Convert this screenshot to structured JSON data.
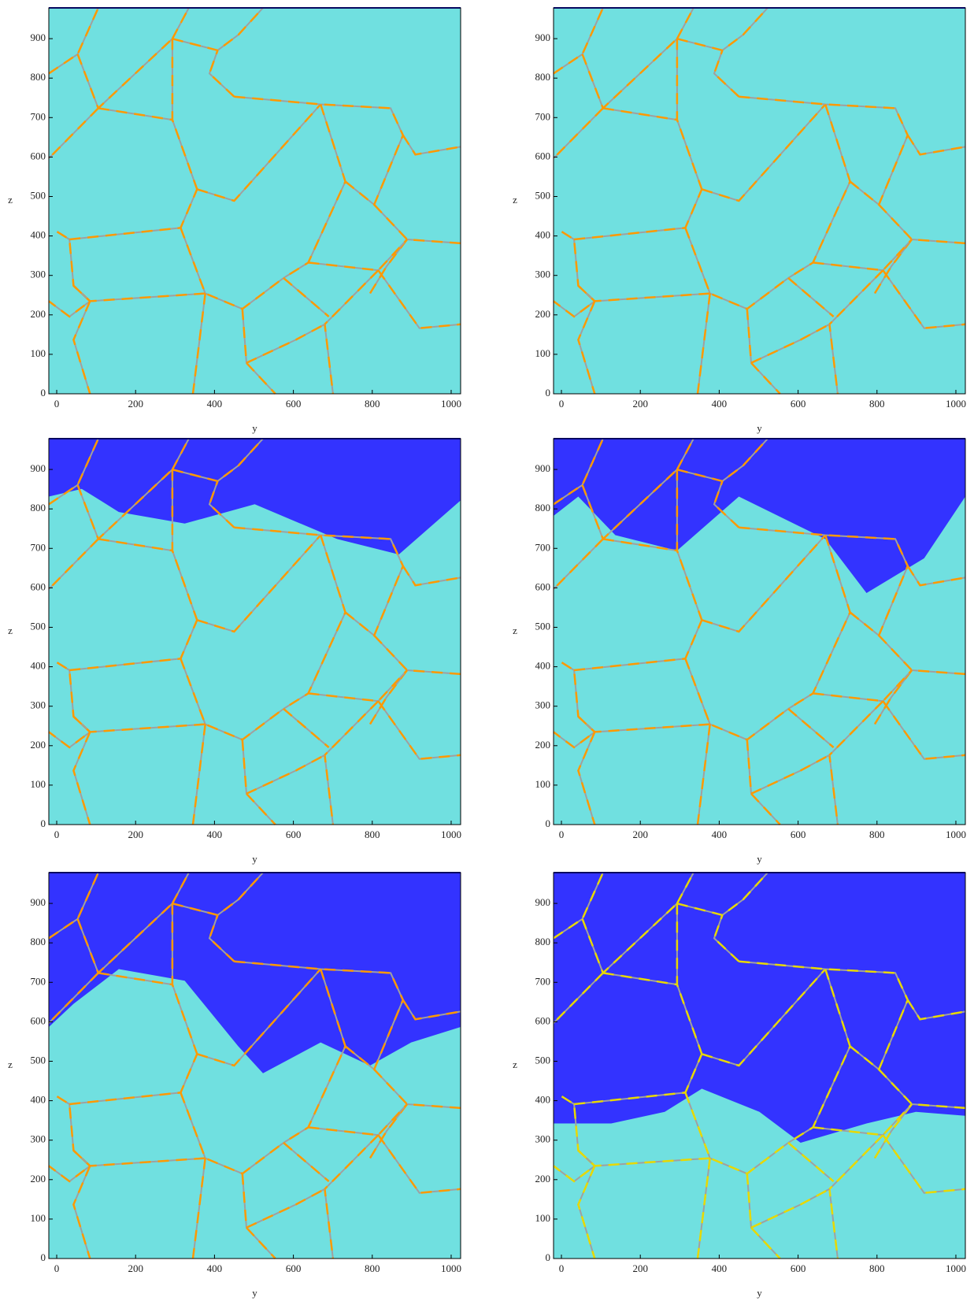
{
  "chart_data": [
    {
      "type": "image",
      "xlabel": "y",
      "ylabel": "z",
      "xlim": [
        -20,
        1024
      ],
      "ylim": [
        0,
        978
      ],
      "xticks": [
        0,
        200,
        400,
        600,
        800,
        1000
      ],
      "yticks": [
        0,
        100,
        200,
        300,
        400,
        500,
        600,
        700,
        800,
        900
      ]
    },
    {
      "type": "image",
      "xlabel": "y",
      "ylabel": "z",
      "xlim": [
        -20,
        1024
      ],
      "ylim": [
        0,
        978
      ],
      "xticks": [
        0,
        200,
        400,
        600,
        800,
        1000
      ],
      "yticks": [
        0,
        100,
        200,
        300,
        400,
        500,
        600,
        700,
        800,
        900
      ]
    },
    {
      "type": "image",
      "xlabel": "y",
      "ylabel": "z",
      "xlim": [
        -20,
        1024
      ],
      "ylim": [
        0,
        978
      ],
      "xticks": [
        0,
        200,
        400,
        600,
        800,
        1000
      ],
      "yticks": [
        0,
        100,
        200,
        300,
        400,
        500,
        600,
        700,
        800,
        900
      ]
    },
    {
      "type": "image",
      "xlabel": "y",
      "ylabel": "z",
      "xlim": [
        -20,
        1024
      ],
      "ylim": [
        0,
        978
      ],
      "xticks": [
        0,
        200,
        400,
        600,
        800,
        1000
      ],
      "yticks": [
        0,
        100,
        200,
        300,
        400,
        500,
        600,
        700,
        800,
        900
      ]
    },
    {
      "type": "image",
      "xlabel": "y",
      "ylabel": "z",
      "xlim": [
        -20,
        1024
      ],
      "ylim": [
        0,
        978
      ],
      "xticks": [
        0,
        200,
        400,
        600,
        800,
        1000
      ],
      "yticks": [
        0,
        100,
        200,
        300,
        400,
        500,
        600,
        700,
        800,
        900
      ]
    },
    {
      "type": "image",
      "xlabel": "y",
      "ylabel": "z",
      "xlim": [
        -20,
        1024
      ],
      "ylim": [
        0,
        978
      ],
      "xticks": [
        0,
        200,
        400,
        600,
        800,
        1000
      ],
      "yticks": [
        0,
        100,
        200,
        300,
        400,
        500,
        600,
        700,
        800,
        900
      ]
    }
  ]
}
